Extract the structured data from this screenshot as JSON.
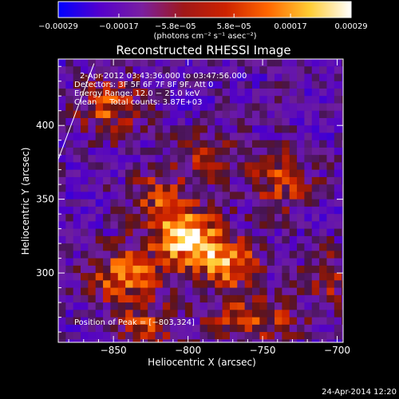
{
  "chart_data": {
    "type": "heatmap",
    "title": "Reconstructed RHESSI Image",
    "xlabel": "Heliocentric X (arcsec)",
    "ylabel": "Heliocentric Y (arcsec)",
    "xlim": [
      -887,
      -696
    ],
    "ylim": [
      253,
      445
    ],
    "x_ticks": [
      -850,
      -800,
      -750,
      -700
    ],
    "x_tick_labels": [
      "−850",
      "−800",
      "−750",
      "−700"
    ],
    "y_ticks": [
      300,
      350,
      400
    ],
    "y_tick_labels": [
      "300",
      "350",
      "400"
    ],
    "colorbar": {
      "min": -0.00029,
      "max": 0.00029,
      "ticks": [
        -0.00029,
        -0.00017,
        -5.8e-05,
        5.8e-05,
        0.00017,
        0.00029
      ],
      "tick_labels": [
        "−0.00029",
        "−0.00017",
        "−5.8e−05",
        "5.8e−05",
        "0.00017",
        "0.00029"
      ],
      "units_label": "(photons cm⁻² s⁻¹ asec⁻²)",
      "colors": [
        "#0000ff",
        "#5500cc",
        "#7a1fa0",
        "#a01818",
        "#cc2200",
        "#ff6600",
        "#ffcc33",
        "#ffffff"
      ]
    },
    "info_lines": [
      "2-Apr-2012 03:43:36.000 to 03:47:56.000",
      "Detectors: 3F 5F 6F 7F 8F 9F, Att 0",
      "Energy Range: 12.0 − 25.0 keV",
      "Clean     Total counts: 3.87E+03"
    ],
    "peak_label": "Position of Peak = [−803,324]",
    "peak": {
      "x": -803,
      "y": 324
    },
    "sources": [
      {
        "x": -803,
        "y": 328,
        "sx": 16,
        "sy": 14,
        "amp": 1.0
      },
      {
        "x": -775,
        "y": 308,
        "sx": 14,
        "sy": 12,
        "amp": 0.7
      },
      {
        "x": -845,
        "y": 300,
        "sx": 18,
        "sy": 14,
        "amp": 0.65
      },
      {
        "x": -760,
        "y": 270,
        "sx": 20,
        "sy": 10,
        "amp": 0.55
      },
      {
        "x": -830,
        "y": 265,
        "sx": 14,
        "sy": 10,
        "amp": 0.5
      },
      {
        "x": -855,
        "y": 415,
        "sx": 14,
        "sy": 14,
        "amp": 0.55
      },
      {
        "x": -740,
        "y": 365,
        "sx": 14,
        "sy": 14,
        "amp": 0.5
      },
      {
        "x": -790,
        "y": 380,
        "sx": 14,
        "sy": 12,
        "amp": 0.45
      },
      {
        "x": -710,
        "y": 300,
        "sx": 10,
        "sy": 14,
        "amp": 0.4
      },
      {
        "x": -825,
        "y": 355,
        "sx": 12,
        "sy": 12,
        "amp": 0.45
      }
    ],
    "limb_line": {
      "x1": -887,
      "y1": 377,
      "x2": -863,
      "y2": 442
    },
    "footer_date": "24-Apr-2014 12:20"
  }
}
